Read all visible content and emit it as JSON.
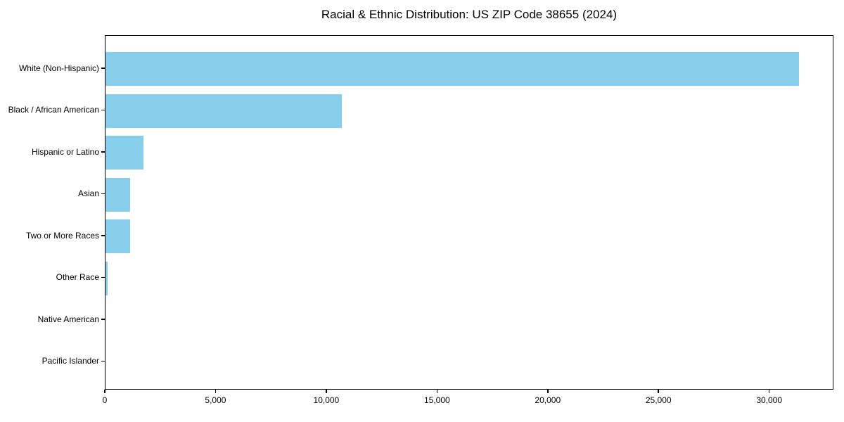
{
  "chart_data": {
    "type": "bar",
    "orientation": "horizontal",
    "title": "Racial & Ethnic Distribution: US ZIP Code 38655 (2024)",
    "categories": [
      "White (Non-Hispanic)",
      "Black / African American",
      "Hispanic or Latino",
      "Asian",
      "Two or More Races",
      "Other Race",
      "Native American",
      "Pacific Islander"
    ],
    "values": [
      31300,
      10670,
      1730,
      1100,
      1100,
      110,
      0,
      0
    ],
    "xlabel": "",
    "ylabel": "",
    "xlim": [
      0,
      32900
    ],
    "x_tick_values": [
      0,
      5000,
      10000,
      15000,
      20000,
      25000,
      30000
    ],
    "x_tick_labels": [
      "0",
      "5,000",
      "10,000",
      "15,000",
      "20,000",
      "25,000",
      "30,000"
    ],
    "bar_color": "#87CEEB",
    "axis_color": "#000000",
    "text_color": "#000000",
    "grid": false,
    "legend": null
  }
}
